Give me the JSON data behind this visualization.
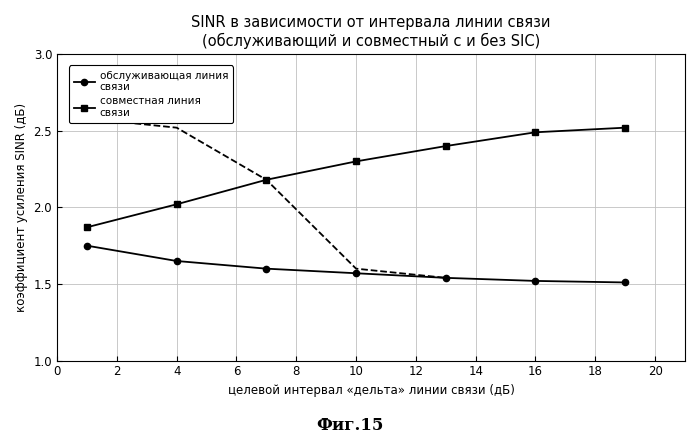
{
  "title_line1": "SINR в зависимости от интервала линии связи",
  "title_line2": "(обслуживающий и совместный с и без SIC)",
  "xlabel": "целевой интервал «дельта» линии связи (дБ)",
  "ylabel": "коэффициент усиления SINR (дБ)",
  "figcaption": "Фиг.15",
  "serving_x": [
    1,
    4,
    7,
    10,
    13,
    16,
    19
  ],
  "serving_y": [
    1.75,
    1.65,
    1.6,
    1.57,
    1.54,
    1.52,
    1.51
  ],
  "joint_x": [
    1,
    4,
    7,
    10,
    13,
    16,
    19
  ],
  "joint_y": [
    1.87,
    2.02,
    2.18,
    2.3,
    2.4,
    2.49,
    2.52
  ],
  "dashed_x": [
    1,
    4,
    7,
    10,
    13
  ],
  "dashed_y": [
    2.58,
    2.52,
    2.18,
    1.6,
    1.54
  ],
  "xlim": [
    0,
    21
  ],
  "xticks": [
    0,
    2,
    4,
    6,
    8,
    10,
    12,
    14,
    16,
    18,
    20
  ],
  "ylim": [
    1.0,
    3.0
  ],
  "yticks": [
    1.0,
    1.5,
    2.0,
    2.5,
    3.0
  ],
  "legend_serving": "обслуживающая линия\nсвязи",
  "legend_joint": "совместная линия\nсвязи",
  "bg_color": "#ffffff",
  "line_color": "#000000",
  "grid_color": "#c0c0c0",
  "title_fontsize": 10.5,
  "label_fontsize": 8.5,
  "tick_fontsize": 8.5,
  "legend_fontsize": 7.5
}
